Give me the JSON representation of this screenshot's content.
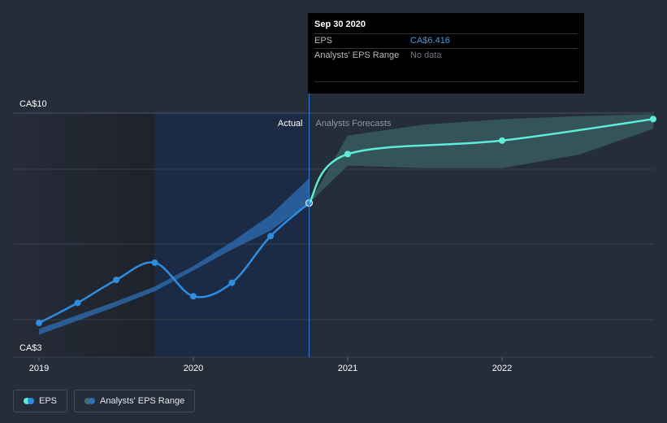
{
  "chart_data": {
    "type": "line",
    "x_axis": {
      "ticks": [
        "2019",
        "2020",
        "2021",
        "2022"
      ]
    },
    "y_axis": {
      "ylim": [
        3,
        10
      ],
      "ticks": [
        "CA$3",
        "CA$10"
      ],
      "log_scale": true
    },
    "regions": {
      "actual_label": "Actual",
      "forecast_label": "Analysts Forecasts"
    },
    "series": [
      {
        "name": "EPS",
        "color": "#2f8de0",
        "points": [
          {
            "x": 2019.0,
            "y": 3.55
          },
          {
            "x": 2019.25,
            "y": 3.92
          },
          {
            "x": 2019.5,
            "y": 4.39
          },
          {
            "x": 2019.75,
            "y": 4.78
          },
          {
            "x": 2020.0,
            "y": 4.05
          },
          {
            "x": 2020.25,
            "y": 4.33
          },
          {
            "x": 2020.5,
            "y": 5.45
          },
          {
            "x": 2020.75,
            "y": 6.416
          }
        ]
      },
      {
        "name": "EPS",
        "color": "#5eecd8",
        "forecast": true,
        "points": [
          {
            "x": 2020.75,
            "y": 6.416
          },
          {
            "x": 2021.0,
            "y": 8.17
          },
          {
            "x": 2022.0,
            "y": 8.73
          },
          {
            "x": 2022.98,
            "y": 9.71
          }
        ]
      }
    ],
    "ranges": [
      {
        "name": "Analysts' EPS Range",
        "color": "#2f6fb5",
        "x": [
          2019.0,
          2019.5,
          2019.75,
          2020.0,
          2020.25,
          2020.5,
          2020.75
        ],
        "upper": [
          3.45,
          3.95,
          4.25,
          4.7,
          5.3,
          6.05,
          7.25
        ],
        "lower": [
          3.35,
          3.85,
          4.15,
          4.6,
          5.1,
          5.6,
          6.416
        ]
      },
      {
        "name": "Analysts' EPS Range",
        "color": "#3f6f6e",
        "x": [
          2020.75,
          2021.0,
          2021.5,
          2022.0,
          2022.5,
          2022.98
        ],
        "upper": [
          6.416,
          8.95,
          9.45,
          9.7,
          9.85,
          9.95
        ],
        "lower": [
          6.416,
          7.72,
          7.62,
          7.62,
          8.15,
          9.25
        ]
      }
    ]
  },
  "tooltip": {
    "date": "Sep 30 2020",
    "rows": [
      {
        "label": "EPS",
        "value": "CA$6.416"
      },
      {
        "label": "Analysts' EPS Range",
        "value": "No data"
      }
    ]
  },
  "legend": [
    {
      "label": "EPS",
      "colors": [
        "#5eecd8",
        "#2f8de0"
      ]
    },
    {
      "label": "Analysts' EPS Range",
      "colors": [
        "#3f6f6e",
        "#2f6fb5"
      ]
    }
  ]
}
